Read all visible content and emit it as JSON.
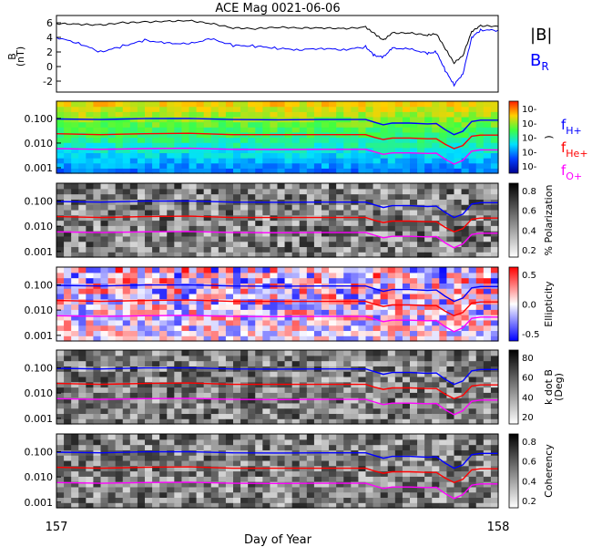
{
  "title": "ACE Mag 0021-06-06",
  "xlabel": "Day of Year",
  "x_ticks": [
    "157",
    "158"
  ],
  "chart_data": [
    {
      "type": "line",
      "panel": "field",
      "ylabel": "B\n(nT)",
      "ylim": [
        -3.5,
        7
      ],
      "y_ticks": [
        "6",
        "4",
        "2",
        "0",
        "-2"
      ],
      "xlim": [
        157,
        158
      ],
      "legend": [
        {
          "label": "|B|",
          "color": "#000000"
        },
        {
          "label": "B_R",
          "color": "#0000ff"
        }
      ],
      "series": [
        {
          "name": "|B|",
          "color": "#000000",
          "x": [
            157.0,
            157.05,
            157.1,
            157.15,
            157.2,
            157.25,
            157.3,
            157.35,
            157.4,
            157.45,
            157.5,
            157.55,
            157.6,
            157.65,
            157.7,
            157.72,
            157.74,
            157.76,
            157.8,
            157.84,
            157.86,
            157.88,
            157.9,
            157.92,
            157.94,
            157.96,
            158.0
          ],
          "y": [
            5.9,
            5.8,
            5.7,
            6.0,
            6.1,
            6.2,
            6.3,
            5.9,
            5.3,
            5.2,
            5.4,
            5.3,
            5.3,
            5.2,
            5.4,
            4.5,
            3.6,
            4.6,
            4.6,
            4.3,
            4.5,
            2.5,
            0.5,
            1.5,
            4.8,
            5.6,
            5.5
          ]
        },
        {
          "name": "B_R",
          "color": "#0000ff",
          "x": [
            157.0,
            157.05,
            157.1,
            157.15,
            157.2,
            157.25,
            157.3,
            157.35,
            157.4,
            157.45,
            157.5,
            157.55,
            157.6,
            157.65,
            157.7,
            157.72,
            157.74,
            157.76,
            157.8,
            157.84,
            157.86,
            157.88,
            157.9,
            157.92,
            157.94,
            157.96,
            158.0
          ],
          "y": [
            4.0,
            3.2,
            2.0,
            2.8,
            3.6,
            3.2,
            3.1,
            3.8,
            2.9,
            2.8,
            2.5,
            2.3,
            2.5,
            2.3,
            2.7,
            1.5,
            1.3,
            2.5,
            2.4,
            1.8,
            2.0,
            -0.5,
            -2.5,
            -1.0,
            4.0,
            5.0,
            5.0
          ]
        }
      ]
    },
    {
      "type": "heatmap",
      "panel": "power",
      "ylim_log": [
        0.0006,
        0.5
      ],
      "y_ticks": [
        "0.100",
        "0.010",
        "0.001"
      ],
      "colorbar_ticks": [
        "10-",
        "10-",
        "10-",
        "10-",
        "10-"
      ],
      "colorbar_label": ")",
      "legend": [
        {
          "label": "fH+",
          "color": "#0000ff"
        },
        {
          "label": "fHe+",
          "color": "#ff0000"
        },
        {
          "label": "fO+",
          "color": "#ff00ff"
        }
      ]
    },
    {
      "type": "heatmap",
      "panel": "polarization",
      "ylim_log": [
        0.0006,
        0.5
      ],
      "y_ticks": [
        "0.100",
        "0.010",
        "0.001"
      ],
      "colorbar_ticks": [
        "0.8",
        "0.6",
        "0.4",
        "0.2"
      ],
      "colorbar_label": "% Polarization"
    },
    {
      "type": "heatmap",
      "panel": "ellipticity",
      "ylim_log": [
        0.0006,
        0.5
      ],
      "y_ticks": [
        "0.100",
        "0.010",
        "0.001"
      ],
      "colorbar_ticks": [
        "0.5",
        "0.0",
        "-0.5"
      ],
      "colorbar_label": "Ellipticity"
    },
    {
      "type": "heatmap",
      "panel": "kdotb",
      "ylim_log": [
        0.0006,
        0.5
      ],
      "y_ticks": [
        "0.100",
        "0.010",
        "0.001"
      ],
      "colorbar_ticks": [
        "80",
        "60",
        "40",
        "20"
      ],
      "colorbar_label": "k dot B\n(Deg)"
    },
    {
      "type": "heatmap",
      "panel": "coherency",
      "ylim_log": [
        0.0006,
        0.5
      ],
      "y_ticks": [
        "0.100",
        "0.010",
        "0.001"
      ],
      "colorbar_ticks": [
        "0.8",
        "0.6",
        "0.4",
        "0.2"
      ],
      "colorbar_label": "Coherency"
    }
  ],
  "gyro_lines": {
    "x": [
      157.0,
      157.1,
      157.2,
      157.3,
      157.4,
      157.5,
      157.6,
      157.7,
      157.72,
      157.74,
      157.76,
      157.8,
      157.84,
      157.86,
      157.88,
      157.9,
      157.92,
      157.94,
      157.96,
      158.0
    ],
    "fH": [
      0.095,
      0.09,
      0.098,
      0.1,
      0.09,
      0.088,
      0.09,
      0.09,
      0.07,
      0.055,
      0.065,
      0.065,
      0.06,
      0.062,
      0.035,
      0.022,
      0.03,
      0.075,
      0.085,
      0.085
    ],
    "fHe": [
      0.024,
      0.022,
      0.024,
      0.025,
      0.022,
      0.022,
      0.022,
      0.022,
      0.017,
      0.014,
      0.016,
      0.016,
      0.015,
      0.015,
      0.009,
      0.006,
      0.008,
      0.019,
      0.021,
      0.021
    ],
    "fO": [
      0.006,
      0.0056,
      0.006,
      0.0062,
      0.0056,
      0.0055,
      0.0056,
      0.0056,
      0.0044,
      0.0035,
      0.004,
      0.004,
      0.0038,
      0.0039,
      0.0022,
      0.0014,
      0.002,
      0.0047,
      0.0053,
      0.0053
    ]
  }
}
